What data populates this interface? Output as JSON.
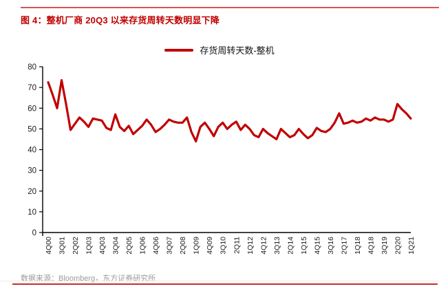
{
  "header": {
    "title": "图 4：整机厂商 20Q3 以来存货周转天数明显下降"
  },
  "legend": {
    "label": "存货周转天数-整机"
  },
  "footer": {
    "source": "数据来源：Bloomberg，东方证券研究所"
  },
  "colors": {
    "series_red": "#C00000",
    "title_red": "#C00000",
    "top_rule": "#D9534F",
    "bottom_rule": "#C0302E",
    "axis": "#000000",
    "tick_text": "#1a1a1a",
    "source_text": "#9A9A9A"
  },
  "chart_data": {
    "type": "line",
    "title": "存货周转天数-整机",
    "ylabel": "",
    "xlabel": "",
    "ylim": [
      0,
      80
    ],
    "y_ticks": [
      0,
      10,
      20,
      30,
      40,
      50,
      60,
      70,
      80
    ],
    "grid": false,
    "legend_position": "top",
    "x_tick_every": 3,
    "x_tick_labels": [
      "4Q00",
      "3Q01",
      "2Q02",
      "1Q03",
      "4Q03",
      "3Q04",
      "2Q05",
      "1Q06",
      "4Q06",
      "3Q07",
      "2Q08",
      "1Q09",
      "4Q09",
      "3Q10",
      "2Q11",
      "1Q12",
      "4Q12",
      "3Q13",
      "2Q14",
      "1Q15",
      "4Q15",
      "3Q16",
      "2Q17",
      "1Q18",
      "4Q18",
      "3Q19",
      "2Q20",
      "1Q21"
    ],
    "categories": [
      "4Q00",
      "1Q01",
      "2Q01",
      "3Q01",
      "4Q01",
      "1Q02",
      "2Q02",
      "3Q02",
      "4Q02",
      "1Q03",
      "2Q03",
      "3Q03",
      "4Q03",
      "1Q04",
      "2Q04",
      "3Q04",
      "4Q04",
      "1Q05",
      "2Q05",
      "3Q05",
      "4Q05",
      "1Q06",
      "2Q06",
      "3Q06",
      "4Q06",
      "1Q07",
      "2Q07",
      "3Q07",
      "4Q07",
      "1Q08",
      "2Q08",
      "3Q08",
      "4Q08",
      "1Q09",
      "2Q09",
      "3Q09",
      "4Q09",
      "1Q10",
      "2Q10",
      "3Q10",
      "4Q10",
      "1Q11",
      "2Q11",
      "3Q11",
      "4Q11",
      "1Q12",
      "2Q12",
      "3Q12",
      "4Q12",
      "1Q13",
      "2Q13",
      "3Q13",
      "4Q13",
      "1Q14",
      "2Q14",
      "3Q14",
      "4Q14",
      "1Q15",
      "2Q15",
      "3Q15",
      "4Q15",
      "1Q16",
      "2Q16",
      "3Q16",
      "4Q16",
      "1Q17",
      "2Q17",
      "3Q17",
      "4Q17",
      "1Q18",
      "2Q18",
      "3Q18",
      "4Q18",
      "1Q19",
      "2Q19",
      "3Q19",
      "4Q19",
      "1Q20",
      "2Q20",
      "3Q20",
      "4Q20",
      "1Q21"
    ],
    "series": [
      {
        "name": "存货周转天数-整机",
        "values": [
          72.5,
          66.5,
          60,
          73.5,
          62,
          49.5,
          52.5,
          55.5,
          53.5,
          51,
          55,
          54.5,
          54,
          50.5,
          49.5,
          57,
          51,
          49,
          51.5,
          47.5,
          49.5,
          51.5,
          54.5,
          52,
          48.5,
          50,
          52,
          54.5,
          53.5,
          53,
          53,
          55.5,
          48.5,
          44,
          51,
          53,
          50,
          46.5,
          51,
          53,
          50,
          52,
          53.5,
          49.5,
          52,
          50,
          47,
          46,
          50,
          48,
          46.5,
          45,
          50,
          48,
          46,
          47,
          50,
          47.5,
          45.5,
          47,
          50.5,
          49,
          48.5,
          50,
          53,
          57.5,
          52.5,
          53,
          54,
          53,
          53.5,
          55,
          54,
          55.5,
          54.5,
          54.5,
          53.5,
          54.5,
          62,
          59.5,
          57.5,
          55
        ]
      }
    ]
  }
}
